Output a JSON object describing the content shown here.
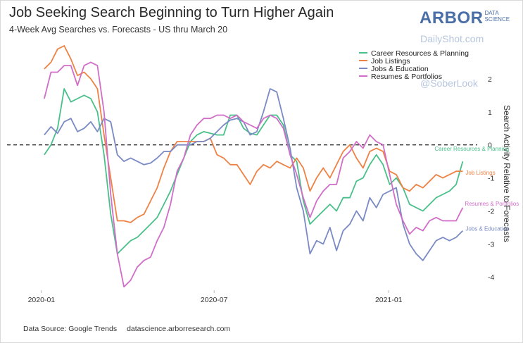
{
  "header": {
    "title": "Job Seeking Search Beginning to Turn Higher Again",
    "subtitle": "4-Week Avg Searches vs. Forecasts - US thru March 20"
  },
  "branding": {
    "name": "ARBOR",
    "sub_line1": "DATA",
    "sub_line2": "SCIENCE",
    "watermark_site": "DailyShot.com",
    "watermark_handle": "@SoberLook"
  },
  "footer": {
    "source": "Data Source: Google Trends",
    "url": "datascience.arborresearch.com"
  },
  "chart_data": {
    "type": "line",
    "ylabel": "Search Activity Relative to Forecasts",
    "xlabel": "",
    "x_ticks": [
      "2020-01",
      "2020-07",
      "2021-01"
    ],
    "y_ticks": [
      -4,
      -3,
      -2,
      -1,
      0,
      1,
      2
    ],
    "ylim": [
      -4.4,
      3.0
    ],
    "y_axis_side": "right",
    "reference_line": {
      "y": 0,
      "style": "dashed"
    },
    "legend_position": "top-right",
    "x": [
      "2020-01-04",
      "2020-01-11",
      "2020-01-18",
      "2020-01-25",
      "2020-02-01",
      "2020-02-08",
      "2020-02-15",
      "2020-02-22",
      "2020-02-29",
      "2020-03-07",
      "2020-03-14",
      "2020-03-21",
      "2020-03-28",
      "2020-04-04",
      "2020-04-11",
      "2020-04-18",
      "2020-04-25",
      "2020-05-02",
      "2020-05-09",
      "2020-05-16",
      "2020-05-23",
      "2020-05-30",
      "2020-06-06",
      "2020-06-13",
      "2020-06-20",
      "2020-06-27",
      "2020-07-04",
      "2020-07-11",
      "2020-07-18",
      "2020-07-25",
      "2020-08-01",
      "2020-08-08",
      "2020-08-15",
      "2020-08-22",
      "2020-08-29",
      "2020-09-05",
      "2020-09-12",
      "2020-09-19",
      "2020-09-26",
      "2020-10-03",
      "2020-10-10",
      "2020-10-17",
      "2020-10-24",
      "2020-10-31",
      "2020-11-07",
      "2020-11-14",
      "2020-11-21",
      "2020-11-28",
      "2020-12-05",
      "2020-12-12",
      "2020-12-19",
      "2020-12-26",
      "2021-01-02",
      "2021-01-09",
      "2021-01-16",
      "2021-01-23",
      "2021-01-30",
      "2021-02-06",
      "2021-02-13",
      "2021-02-20",
      "2021-02-27",
      "2021-03-06",
      "2021-03-13",
      "2021-03-20"
    ],
    "series": [
      {
        "name": "Career Resources & Planning",
        "color": "#49c08a",
        "end_label": "Career Resources & Planning",
        "values": [
          -0.3,
          0.0,
          0.5,
          1.7,
          1.3,
          1.4,
          1.5,
          1.4,
          1.0,
          -0.3,
          -2.1,
          -3.3,
          -3.1,
          -2.9,
          -2.8,
          -2.6,
          -2.4,
          -2.2,
          -1.8,
          -1.4,
          -0.9,
          -0.4,
          0.1,
          0.3,
          0.4,
          0.35,
          0.3,
          0.3,
          0.9,
          0.9,
          0.5,
          0.35,
          0.3,
          0.6,
          0.9,
          0.9,
          0.6,
          -0.3,
          -0.5,
          -1.7,
          -2.4,
          -2.2,
          -2.0,
          -1.8,
          -2.0,
          -1.6,
          -1.6,
          -1.1,
          -1.0,
          -0.6,
          -0.3,
          -0.6,
          -1.2,
          -1.0,
          -1.3,
          -1.8,
          -1.9,
          -2.0,
          -1.8,
          -1.6,
          -1.5,
          -1.4,
          -1.2,
          -0.5
        ]
      },
      {
        "name": "Job Listings",
        "color": "#ee8244",
        "end_label": "Job Listings",
        "values": [
          2.3,
          2.5,
          2.9,
          3.0,
          2.6,
          2.1,
          2.2,
          2.0,
          1.7,
          0.3,
          -1.0,
          -2.3,
          -2.3,
          -2.35,
          -2.2,
          -2.1,
          -1.7,
          -1.3,
          -0.7,
          -0.2,
          0.1,
          0.1,
          0.1,
          0.1,
          0.1,
          0.2,
          -0.3,
          -0.4,
          -0.6,
          -0.6,
          -0.9,
          -1.2,
          -0.8,
          -0.6,
          -0.7,
          -0.5,
          -0.6,
          -0.7,
          -0.4,
          -0.7,
          -1.4,
          -1.0,
          -0.7,
          -1.0,
          -0.6,
          -0.2,
          0.0,
          -0.4,
          -0.7,
          -0.2,
          -0.1,
          -0.2,
          -0.8,
          -0.9,
          -1.3,
          -1.4,
          -1.2,
          -1.3,
          -1.1,
          -0.9,
          -1.0,
          -0.9,
          -0.8,
          -0.8
        ]
      },
      {
        "name": "Jobs & Education",
        "color": "#7a8ac4",
        "end_label": "Jobs & Education",
        "values": [
          0.3,
          0.55,
          0.35,
          0.7,
          0.8,
          0.4,
          0.5,
          0.7,
          0.4,
          0.8,
          0.7,
          -0.3,
          -0.5,
          -0.4,
          -0.5,
          -0.6,
          -0.55,
          -0.4,
          -0.2,
          -0.2,
          0.0,
          0.0,
          0.0,
          0.1,
          0.1,
          0.2,
          0.4,
          0.6,
          0.75,
          0.8,
          0.7,
          0.3,
          0.4,
          1.0,
          1.7,
          1.6,
          0.8,
          -0.1,
          -1.3,
          -2.0,
          -3.3,
          -2.9,
          -3.0,
          -2.5,
          -3.2,
          -2.6,
          -2.4,
          -2.0,
          -2.3,
          -1.6,
          -1.9,
          -1.5,
          -1.4,
          -1.3,
          -2.4,
          -3.0,
          -3.3,
          -3.5,
          -3.2,
          -2.9,
          -2.8,
          -2.9,
          -2.8,
          -2.6
        ]
      },
      {
        "name": "Resumes & Portfolios",
        "color": "#d06ec8",
        "end_label": "Resumes & Portfolios",
        "values": [
          1.4,
          2.2,
          2.2,
          2.4,
          2.4,
          1.8,
          2.4,
          2.5,
          2.4,
          1.0,
          -1.5,
          -3.3,
          -4.3,
          -4.1,
          -3.7,
          -3.5,
          -3.4,
          -2.9,
          -2.5,
          -1.8,
          -0.8,
          -0.4,
          0.3,
          0.6,
          0.8,
          0.8,
          0.9,
          0.9,
          0.8,
          0.9,
          0.7,
          0.6,
          0.5,
          0.8,
          0.9,
          0.8,
          0.5,
          -0.3,
          -0.9,
          -1.6,
          -2.2,
          -1.7,
          -1.4,
          -1.2,
          -1.2,
          -0.4,
          -0.2,
          0.1,
          -0.1,
          0.3,
          0.1,
          0.0,
          -0.9,
          -1.8,
          -2.3,
          -2.7,
          -2.5,
          -2.6,
          -2.3,
          -2.2,
          -2.3,
          -2.3,
          -2.3,
          -1.9
        ]
      }
    ]
  }
}
